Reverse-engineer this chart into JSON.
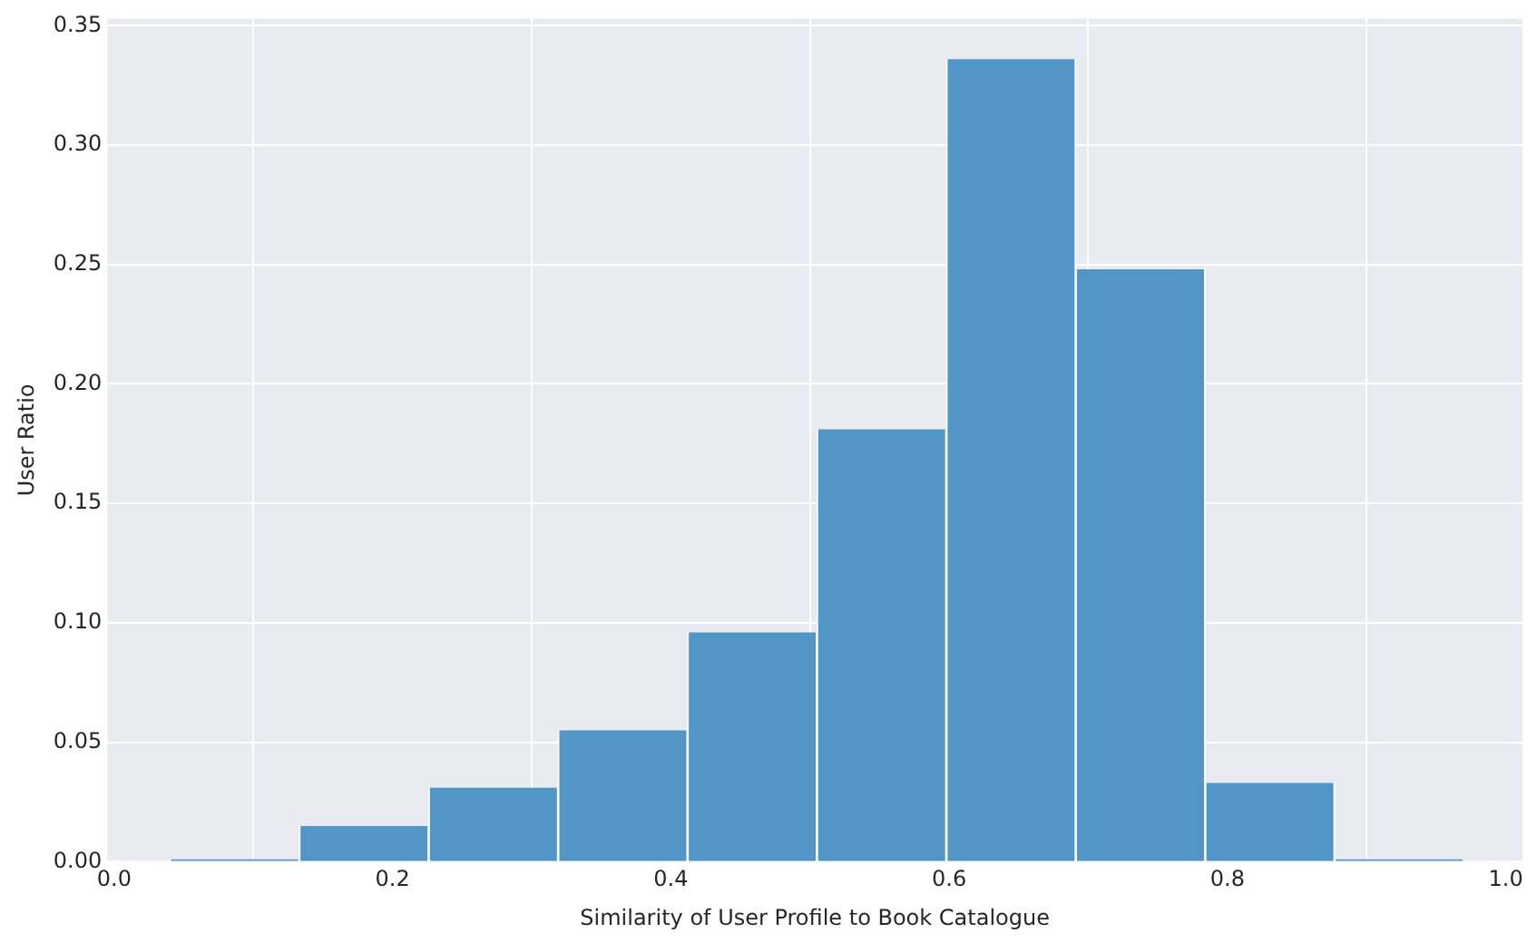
{
  "chart_data": {
    "type": "histogram",
    "xlabel": "Similarity of User Profile to Book Catalogue",
    "ylabel": "User Ratio",
    "bins": [
      0.04,
      0.133,
      0.226,
      0.319,
      0.412,
      0.505,
      0.598,
      0.691,
      0.784,
      0.877,
      0.97
    ],
    "values": [
      0.001,
      0.015,
      0.031,
      0.055,
      0.096,
      0.181,
      0.336,
      0.248,
      0.033,
      0.001
    ],
    "color": "#5196c7",
    "xlim": [
      -0.005,
      1.012
    ],
    "xticks": [
      {
        "value": 0,
        "label": "0.0"
      },
      {
        "value": 0.2,
        "label": "0.2"
      },
      {
        "value": 0.4,
        "label": "0.4"
      },
      {
        "value": 0.6,
        "label": "0.6"
      },
      {
        "value": 0.8,
        "label": "0.8"
      },
      {
        "value": 1,
        "label": "1.0"
      }
    ],
    "ylim": [
      0,
      0.353
    ],
    "yticks": [
      {
        "value": 0,
        "label": "0.00"
      },
      {
        "value": 0.05,
        "label": "0.05"
      },
      {
        "value": 0.1,
        "label": "0.10"
      },
      {
        "value": 0.15,
        "label": "0.15"
      },
      {
        "value": 0.2,
        "label": "0.20"
      },
      {
        "value": 0.25,
        "label": "0.25"
      },
      {
        "value": 0.3,
        "label": "0.30"
      },
      {
        "value": 0.35,
        "label": "0.35"
      }
    ],
    "grid": true
  }
}
